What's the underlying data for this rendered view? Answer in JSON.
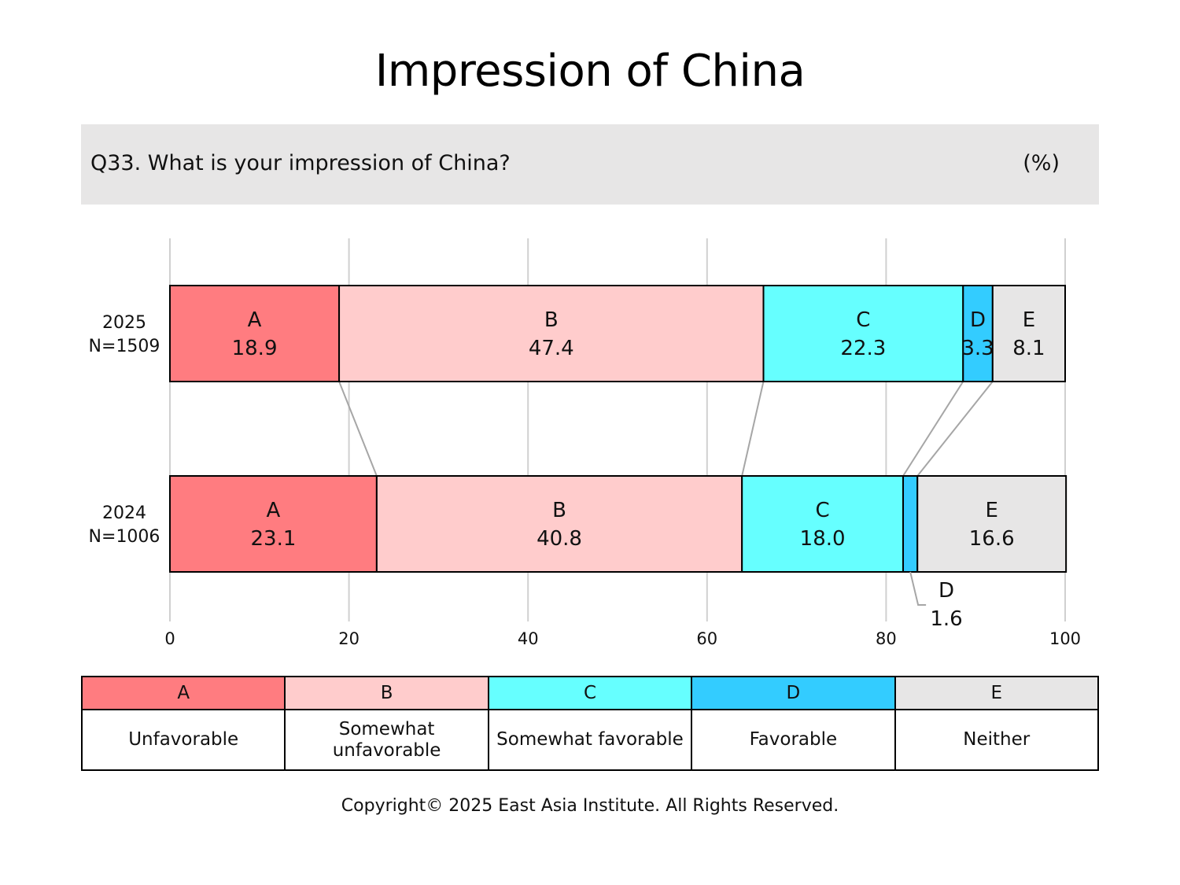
{
  "title": "Impression of China",
  "question": "Q33. What is your impression of China?",
  "unit": "(%)",
  "copyright": "Copyright© 2025 East Asia Institute. All Rights Reserved.",
  "legend": [
    {
      "key": "A",
      "label": "Unfavorable",
      "color": "#ff7c80"
    },
    {
      "key": "B",
      "label": "Somewhat unfavorable",
      "color": "#ffcccc"
    },
    {
      "key": "C",
      "label": "Somewhat favorable",
      "color": "#66ffff"
    },
    {
      "key": "D",
      "label": "Favorable",
      "color": "#33ccff"
    },
    {
      "key": "E",
      "label": "Neither",
      "color": "#e7e6e6"
    }
  ],
  "chart_data": {
    "type": "bar",
    "orientation": "horizontal",
    "stacked": true,
    "title": "Impression of China",
    "xlim": [
      0,
      100
    ],
    "xticks": [
      0,
      20,
      40,
      60,
      80,
      100
    ],
    "grid": true,
    "categories": [
      {
        "year": "2025",
        "n": "N=1509"
      },
      {
        "year": "2024",
        "n": "N=1006"
      }
    ],
    "series": [
      {
        "name": "A",
        "color": "#ff7c80",
        "values": [
          18.9,
          23.1
        ]
      },
      {
        "name": "B",
        "color": "#ffcccc",
        "values": [
          47.4,
          40.8
        ]
      },
      {
        "name": "C",
        "color": "#66ffff",
        "values": [
          22.3,
          18.0
        ]
      },
      {
        "name": "D",
        "color": "#33ccff",
        "values": [
          3.3,
          1.6
        ]
      },
      {
        "name": "E",
        "color": "#e7e6e6",
        "values": [
          8.1,
          16.6
        ]
      }
    ]
  }
}
